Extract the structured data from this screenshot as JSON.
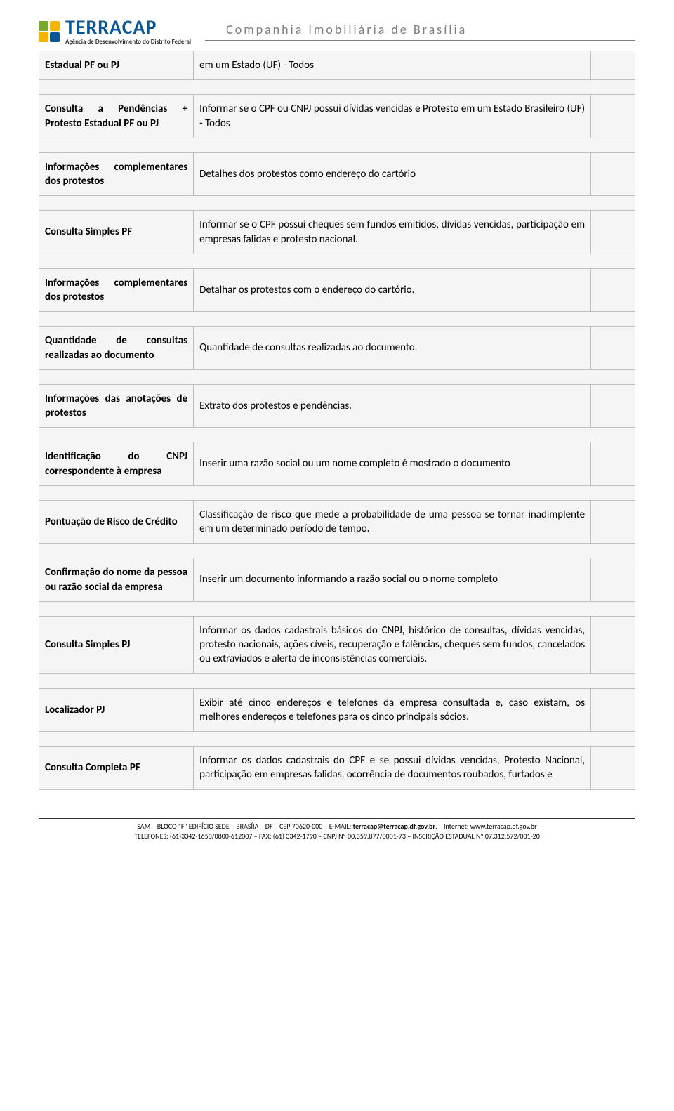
{
  "header": {
    "logo_main": "TERRACAP",
    "logo_sub": "Agência de Desenvolvimento do Distrito Federal",
    "company_title": "Companhia Imobiliária de Brasília"
  },
  "rows": [
    {
      "col1": "Estadual PF ou PJ",
      "col2": "em um Estado (UF) - Todos"
    },
    {
      "col1": "Consulta a Pendências + Protesto Estadual PF ou PJ",
      "col2": "Informar se o CPF ou CNPJ possui dívidas vencidas e Protesto em um Estado Brasileiro (UF) - Todos"
    },
    {
      "col1": "Informações complementares dos protestos",
      "col2": "Detalhes dos protestos como endereço do cartório"
    },
    {
      "col1": "Consulta Simples PF",
      "col2": "Informar se o CPF possui cheques sem fundos emitidos, dívidas vencidas, participação em empresas falidas e protesto nacional."
    },
    {
      "col1": "Informações complementares dos protestos",
      "col2": "Detalhar os protestos com o endereço do cartório."
    },
    {
      "col1": "Quantidade de consultas realizadas ao documento",
      "col2": "Quantidade de consultas realizadas ao documento."
    },
    {
      "col1": "Informações das anotações de protestos",
      "col2": "Extrato dos protestos e pendências."
    },
    {
      "col1": "Identificação do CNPJ correspondente à empresa",
      "col2": "Inserir uma razão social ou um nome completo é mostrado o documento"
    },
    {
      "col1": "Pontuação de Risco de Crédito",
      "col2": "Classificação de risco que mede a probabilidade de uma pessoa se tornar inadimplente em um determinado período de tempo."
    },
    {
      "col1": "Confirmação do nome da pessoa ou razão social da empresa",
      "col2": "Inserir  um documento informando a razão social ou o nome completo"
    },
    {
      "col1": "Consulta Simples PJ",
      "col2": "Informar os dados cadastrais básicos do CNPJ, histórico de consultas, dívidas vencidas, protesto nacionais, ações cíveis, recuperação e falências, cheques sem fundos, cancelados ou extraviados e alerta de inconsistências comerciais."
    },
    {
      "col1": "Localizador PJ",
      "col2": "Exibir até cinco endereços e telefones da empresa consultada e, caso existam, os melhores endereços e telefones para os cinco principais sócios."
    },
    {
      "col1": "Consulta Completa PF",
      "col2": "Informar os dados cadastrais do CPF e se possui dívidas vencidas, Protesto Nacional, participação em empresas falidas, ocorrência de documentos roubados, furtados e"
    }
  ],
  "footer": {
    "line1_a": "SAM – BLOCO \"F\" EDIFÍCIO SEDE – BRASÍIA – DF – CEP 70620-000 – E-MAIL: ",
    "line1_b": "terracap@terracap.df.gov.br",
    "line1_c": ". – Internet: ",
    "line1_d": "www.terracap.df.gov.br",
    "line2": "TELEFONES: (61)3342-1650/0800-612007 – FAX: (61) 3342-1790 – CNPJ Nº 00.359.877/0001-73 – INSCRIÇÃO ESTADUAL Nº 07.312.572/001-20"
  }
}
